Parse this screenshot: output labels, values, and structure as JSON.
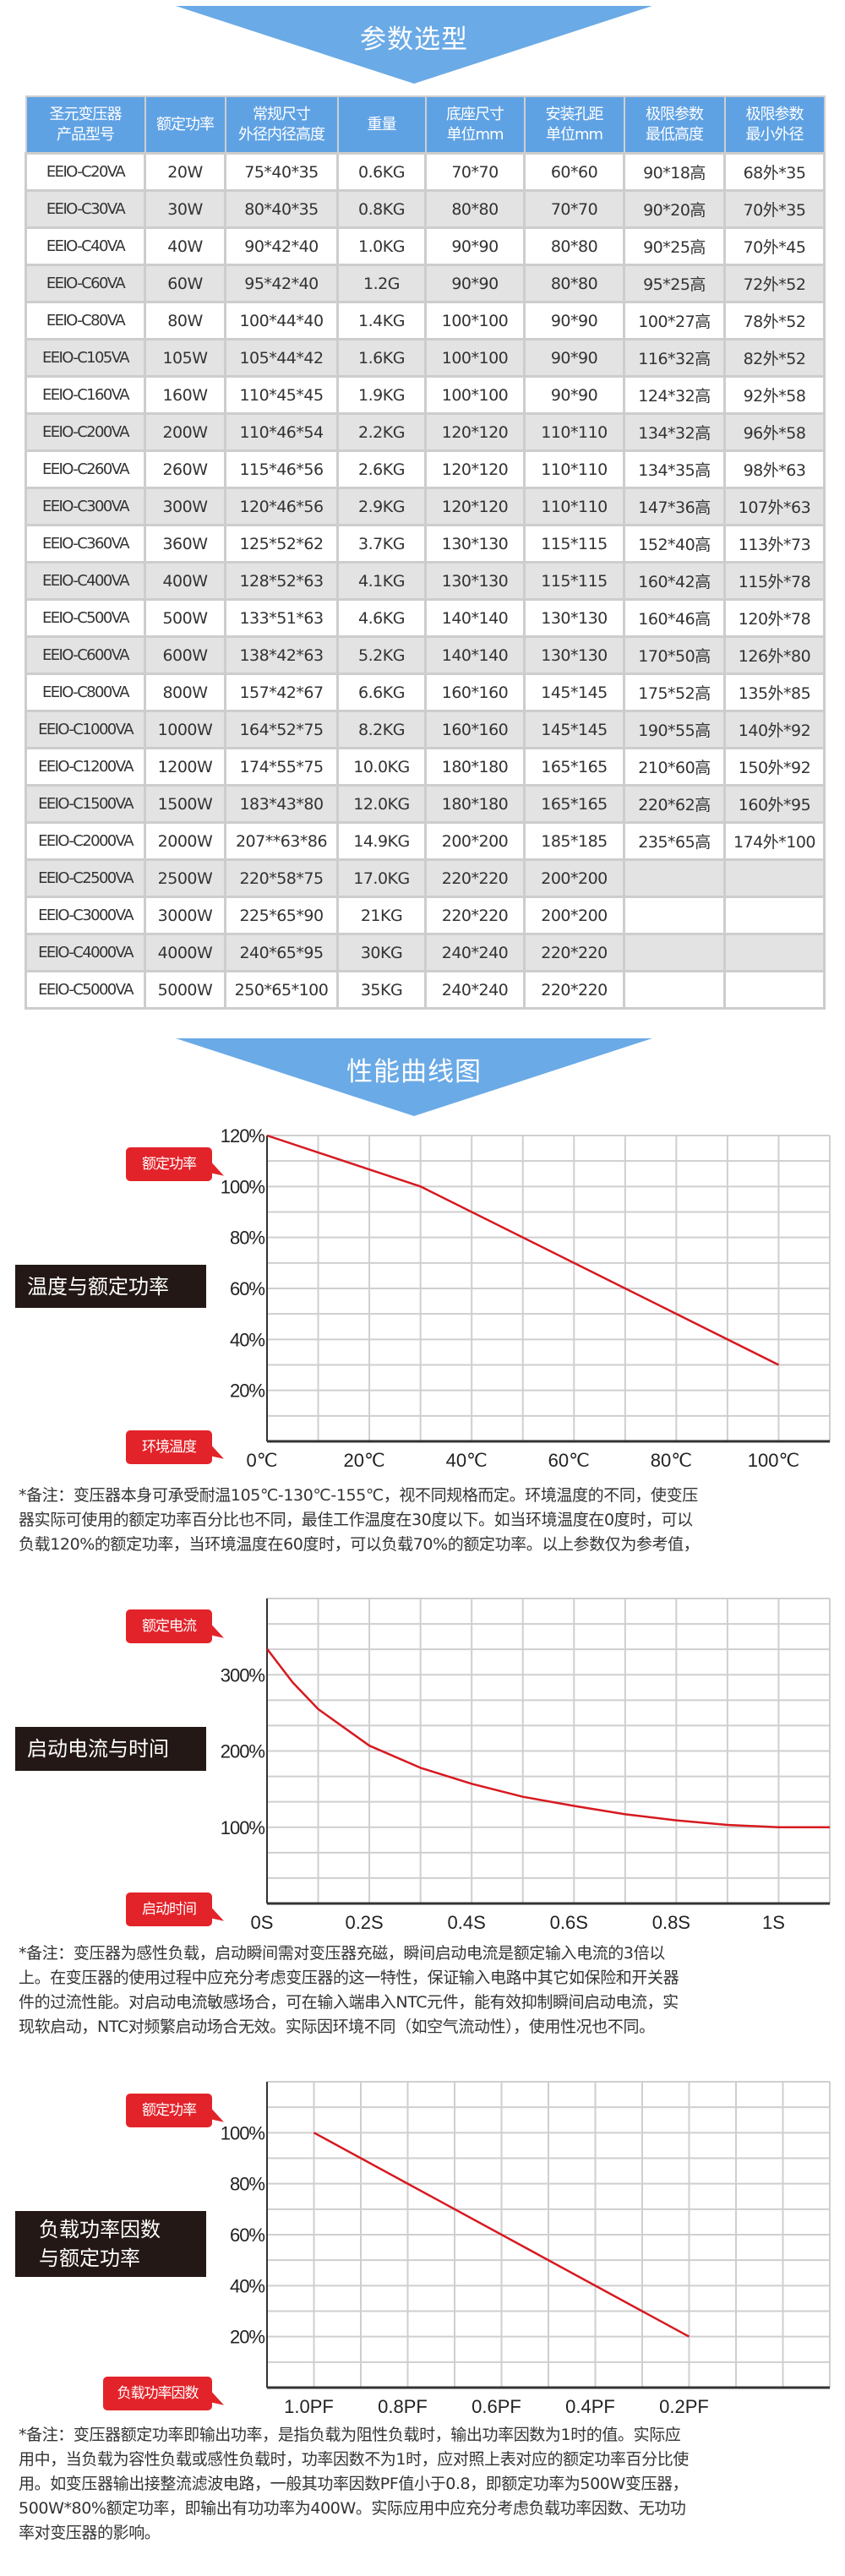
{
  "colors": {
    "banner": "#6aaae6",
    "header": "#5fa2e4",
    "curve": "#d71920",
    "callout": "#e3232a",
    "label_box": "#231815"
  },
  "section1": {
    "title": "参数选型"
  },
  "table": {
    "headers": [
      "圣元变压器\n产品型号",
      "额定功率",
      "常规尺寸\n外径内径高度",
      "重量",
      "底座尺寸\n单位mm",
      "安装孔距\n单位mm",
      "极限参数\n最低高度",
      "极限参数\n最小外径"
    ],
    "rows": [
      [
        "EEIO-C20VA",
        "20W",
        "75*40*35",
        "0.6KG",
        "70*70",
        "60*60",
        "90*18高",
        "68外*35"
      ],
      [
        "EEIO-C30VA",
        "30W",
        "80*40*35",
        "0.8KG",
        "80*80",
        "70*70",
        "90*20高",
        "70外*35"
      ],
      [
        "EEIO-C40VA",
        "40W",
        "90*42*40",
        "1.0KG",
        "90*90",
        "80*80",
        "90*25高",
        "70外*45"
      ],
      [
        "EEIO-C60VA",
        "60W",
        "95*42*40",
        "1.2G",
        "90*90",
        "80*80",
        "95*25高",
        "72外*52"
      ],
      [
        "EEIO-C80VA",
        "80W",
        "100*44*40",
        "1.4KG",
        "100*100",
        "90*90",
        "100*27高",
        "78外*52"
      ],
      [
        "EEIO-C105VA",
        "105W",
        "105*44*42",
        "1.6KG",
        "100*100",
        "90*90",
        "116*32高",
        "82外*52"
      ],
      [
        "EEIO-C160VA",
        "160W",
        "110*45*45",
        "1.9KG",
        "100*100",
        "90*90",
        "124*32高",
        "92外*58"
      ],
      [
        "EEIO-C200VA",
        "200W",
        "110*46*54",
        "2.2KG",
        "120*120",
        "110*110",
        "134*32高",
        "96外*58"
      ],
      [
        "EEIO-C260VA",
        "260W",
        "115*46*56",
        "2.6KG",
        "120*120",
        "110*110",
        "134*35高",
        "98外*63"
      ],
      [
        "EEIO-C300VA",
        "300W",
        "120*46*56",
        "2.9KG",
        "120*120",
        "110*110",
        "147*36高",
        "107外*63"
      ],
      [
        "EEIO-C360VA",
        "360W",
        "125*52*62",
        "3.7KG",
        "130*130",
        "115*115",
        "152*40高",
        "113外*73"
      ],
      [
        "EEIO-C400VA",
        "400W",
        "128*52*63",
        "4.1KG",
        "130*130",
        "115*115",
        "160*42高",
        "115外*78"
      ],
      [
        "EEIO-C500VA",
        "500W",
        "133*51*63",
        "4.6KG",
        "140*140",
        "130*130",
        "160*46高",
        "120外*78"
      ],
      [
        "EEIO-C600VA",
        "600W",
        "138*42*63",
        "5.2KG",
        "140*140",
        "130*130",
        "170*50高",
        "126外*80"
      ],
      [
        "EEIO-C800VA",
        "800W",
        "157*42*67",
        "6.6KG",
        "160*160",
        "145*145",
        "175*52高",
        "135外*85"
      ],
      [
        "EEIO-C1000VA",
        "1000W",
        "164*52*75",
        "8.2KG",
        "160*160",
        "145*145",
        "190*55高",
        "140外*92"
      ],
      [
        "EEIO-C1200VA",
        "1200W",
        "174*55*75",
        "10.0KG",
        "180*180",
        "165*165",
        "210*60高",
        "150外*92"
      ],
      [
        "EEIO-C1500VA",
        "1500W",
        "183*43*80",
        "12.0KG",
        "180*180",
        "165*165",
        "220*62高",
        "160外*95"
      ],
      [
        "EEIO-C2000VA",
        "2000W",
        "207**63*86",
        "14.9KG",
        "200*200",
        "185*185",
        "235*65高",
        "174外*100"
      ],
      [
        "EEIO-C2500VA",
        "2500W",
        "220*58*75",
        "17.0KG",
        "220*220",
        "200*200",
        "",
        ""
      ],
      [
        "EEIO-C3000VA",
        "3000W",
        "225*65*90",
        "21KG",
        "220*220",
        "200*200",
        "",
        ""
      ],
      [
        "EEIO-C4000VA",
        "4000W",
        "240*65*95",
        "30KG",
        "240*240",
        "220*220",
        "",
        ""
      ],
      [
        "EEIO-C5000VA",
        "5000W",
        "250*65*100",
        "35KG",
        "240*240",
        "220*220",
        "",
        ""
      ]
    ]
  },
  "section2": {
    "title": "性能曲线图"
  },
  "charts": [
    {
      "label": "温度与额定功率",
      "y_callout": "额定功率",
      "x_callout": "环境温度",
      "notes": [
        "*备注：变压器本身可承受耐温105℃-130℃-155℃，视不同规格而定。环境温度的不同，使变压",
        "器实际可使用的额定功率百分比也不同，最佳工作温度在30度以下。如当环境温度在0度时，可以",
        "负载120%的额定功率，当环境温度在60度时，可以负载70%的额定功率。以上参数仅为参考值，"
      ]
    },
    {
      "label": "启动电流与时间",
      "y_callout": "额定电流",
      "x_callout": "启动时间",
      "notes": [
        "*备注：变压器为感性负载，启动瞬间需对变压器充磁，瞬间启动电流是额定输入电流的3倍以",
        "上。在变压器的使用过程中应充分考虑变压器的这一特性，保证输入电路中其它如保险和开关器",
        "件的过流性能。对启动电流敏感场合，可在输入端串入NTC元件，能有效抑制瞬间启动电流，实",
        "现软启动，NTC对频繁启动场合无效。实际因环境不同（如空气流动性），使用性况也不同。"
      ]
    },
    {
      "label": "负载功率因数\n与额定功率",
      "y_callout": "额定功率",
      "x_callout": "负载功率因数",
      "notes": [
        "*备注：变压器额定功率即输出功率，是指负载为阻性负载时，输出功率因数为1时的值。实际应",
        "用中，当负载为容性负载或感性负载时，功率因数不为1时，应对照上表对应的额定功率百分比使",
        "用。如变压器输出接整流滤波电路，一般其功率因数PF值小于0.8，即额定功率为500W变压器，",
        "500W*80%额定功率，即输出有功功率为400W。实际应用中应充分考虑负载功率因数、无功功",
        "率对变压器的影响。"
      ]
    }
  ],
  "chart_data": [
    {
      "type": "line",
      "xlim": [
        0,
        110
      ],
      "ylim": [
        0,
        120
      ],
      "grid": true,
      "xticks": [
        0,
        20,
        40,
        60,
        80,
        100
      ],
      "xtick_labels": [
        "0℃",
        "20℃",
        "40℃",
        "60℃",
        "80℃",
        "100℃"
      ],
      "yticks": [
        20,
        40,
        60,
        80,
        100,
        120
      ],
      "ytick_labels": [
        "20%",
        "40%",
        "60%",
        "80%",
        "100%",
        "120%"
      ],
      "x": [
        0,
        30,
        100
      ],
      "y": [
        120,
        100,
        30
      ]
    },
    {
      "type": "line",
      "xlim": [
        0,
        1.1
      ],
      "ylim": [
        0,
        400
      ],
      "grid": true,
      "xticks": [
        0,
        0.2,
        0.4,
        0.6,
        0.8,
        1.0
      ],
      "xtick_labels": [
        "0S",
        "0.2S",
        "0.4S",
        "0.6S",
        "0.8S",
        "1S"
      ],
      "yticks": [
        100,
        200,
        300
      ],
      "ytick_labels": [
        "100%",
        "200%",
        "300%"
      ],
      "x": [
        0,
        0.05,
        0.1,
        0.2,
        0.3,
        0.4,
        0.5,
        0.6,
        0.7,
        0.8,
        0.9,
        1.0,
        1.1
      ],
      "y": [
        334,
        290,
        255,
        207,
        178,
        157,
        140,
        128,
        117,
        109,
        103,
        100,
        100
      ]
    },
    {
      "type": "line",
      "xlim": [
        1.1,
        -0.1
      ],
      "ylim": [
        0,
        120
      ],
      "grid": true,
      "xticks": [
        1.0,
        0.8,
        0.6,
        0.4,
        0.2
      ],
      "xtick_labels": [
        "1.0PF",
        "0.8PF",
        "0.6PF",
        "0.4PF",
        "0.2PF"
      ],
      "yticks": [
        20,
        40,
        60,
        80,
        100
      ],
      "ytick_labels": [
        "20%",
        "40%",
        "60%",
        "80%",
        "100%"
      ],
      "x": [
        1.0,
        0.2
      ],
      "y": [
        100,
        20
      ]
    }
  ]
}
